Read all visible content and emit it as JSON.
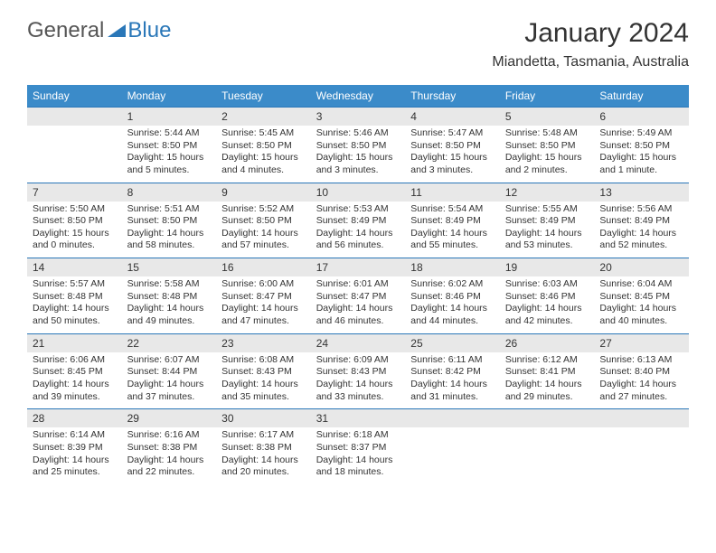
{
  "logo": {
    "text1": "General",
    "text2": "Blue"
  },
  "title": "January 2024",
  "location": "Miandetta, Tasmania, Australia",
  "colors": {
    "header_bg": "#3b8bc9",
    "header_border": "#2a77b8",
    "daynum_bg": "#e8e8e8",
    "text": "#333333"
  },
  "day_names": [
    "Sunday",
    "Monday",
    "Tuesday",
    "Wednesday",
    "Thursday",
    "Friday",
    "Saturday"
  ],
  "weeks": [
    {
      "nums": [
        "",
        "1",
        "2",
        "3",
        "4",
        "5",
        "6"
      ],
      "details": [
        "",
        "Sunrise: 5:44 AM\nSunset: 8:50 PM\nDaylight: 15 hours and 5 minutes.",
        "Sunrise: 5:45 AM\nSunset: 8:50 PM\nDaylight: 15 hours and 4 minutes.",
        "Sunrise: 5:46 AM\nSunset: 8:50 PM\nDaylight: 15 hours and 3 minutes.",
        "Sunrise: 5:47 AM\nSunset: 8:50 PM\nDaylight: 15 hours and 3 minutes.",
        "Sunrise: 5:48 AM\nSunset: 8:50 PM\nDaylight: 15 hours and 2 minutes.",
        "Sunrise: 5:49 AM\nSunset: 8:50 PM\nDaylight: 15 hours and 1 minute."
      ]
    },
    {
      "nums": [
        "7",
        "8",
        "9",
        "10",
        "11",
        "12",
        "13"
      ],
      "details": [
        "Sunrise: 5:50 AM\nSunset: 8:50 PM\nDaylight: 15 hours and 0 minutes.",
        "Sunrise: 5:51 AM\nSunset: 8:50 PM\nDaylight: 14 hours and 58 minutes.",
        "Sunrise: 5:52 AM\nSunset: 8:50 PM\nDaylight: 14 hours and 57 minutes.",
        "Sunrise: 5:53 AM\nSunset: 8:49 PM\nDaylight: 14 hours and 56 minutes.",
        "Sunrise: 5:54 AM\nSunset: 8:49 PM\nDaylight: 14 hours and 55 minutes.",
        "Sunrise: 5:55 AM\nSunset: 8:49 PM\nDaylight: 14 hours and 53 minutes.",
        "Sunrise: 5:56 AM\nSunset: 8:49 PM\nDaylight: 14 hours and 52 minutes."
      ]
    },
    {
      "nums": [
        "14",
        "15",
        "16",
        "17",
        "18",
        "19",
        "20"
      ],
      "details": [
        "Sunrise: 5:57 AM\nSunset: 8:48 PM\nDaylight: 14 hours and 50 minutes.",
        "Sunrise: 5:58 AM\nSunset: 8:48 PM\nDaylight: 14 hours and 49 minutes.",
        "Sunrise: 6:00 AM\nSunset: 8:47 PM\nDaylight: 14 hours and 47 minutes.",
        "Sunrise: 6:01 AM\nSunset: 8:47 PM\nDaylight: 14 hours and 46 minutes.",
        "Sunrise: 6:02 AM\nSunset: 8:46 PM\nDaylight: 14 hours and 44 minutes.",
        "Sunrise: 6:03 AM\nSunset: 8:46 PM\nDaylight: 14 hours and 42 minutes.",
        "Sunrise: 6:04 AM\nSunset: 8:45 PM\nDaylight: 14 hours and 40 minutes."
      ]
    },
    {
      "nums": [
        "21",
        "22",
        "23",
        "24",
        "25",
        "26",
        "27"
      ],
      "details": [
        "Sunrise: 6:06 AM\nSunset: 8:45 PM\nDaylight: 14 hours and 39 minutes.",
        "Sunrise: 6:07 AM\nSunset: 8:44 PM\nDaylight: 14 hours and 37 minutes.",
        "Sunrise: 6:08 AM\nSunset: 8:43 PM\nDaylight: 14 hours and 35 minutes.",
        "Sunrise: 6:09 AM\nSunset: 8:43 PM\nDaylight: 14 hours and 33 minutes.",
        "Sunrise: 6:11 AM\nSunset: 8:42 PM\nDaylight: 14 hours and 31 minutes.",
        "Sunrise: 6:12 AM\nSunset: 8:41 PM\nDaylight: 14 hours and 29 minutes.",
        "Sunrise: 6:13 AM\nSunset: 8:40 PM\nDaylight: 14 hours and 27 minutes."
      ]
    },
    {
      "nums": [
        "28",
        "29",
        "30",
        "31",
        "",
        "",
        ""
      ],
      "details": [
        "Sunrise: 6:14 AM\nSunset: 8:39 PM\nDaylight: 14 hours and 25 minutes.",
        "Sunrise: 6:16 AM\nSunset: 8:38 PM\nDaylight: 14 hours and 22 minutes.",
        "Sunrise: 6:17 AM\nSunset: 8:38 PM\nDaylight: 14 hours and 20 minutes.",
        "Sunrise: 6:18 AM\nSunset: 8:37 PM\nDaylight: 14 hours and 18 minutes.",
        "",
        "",
        ""
      ]
    }
  ]
}
